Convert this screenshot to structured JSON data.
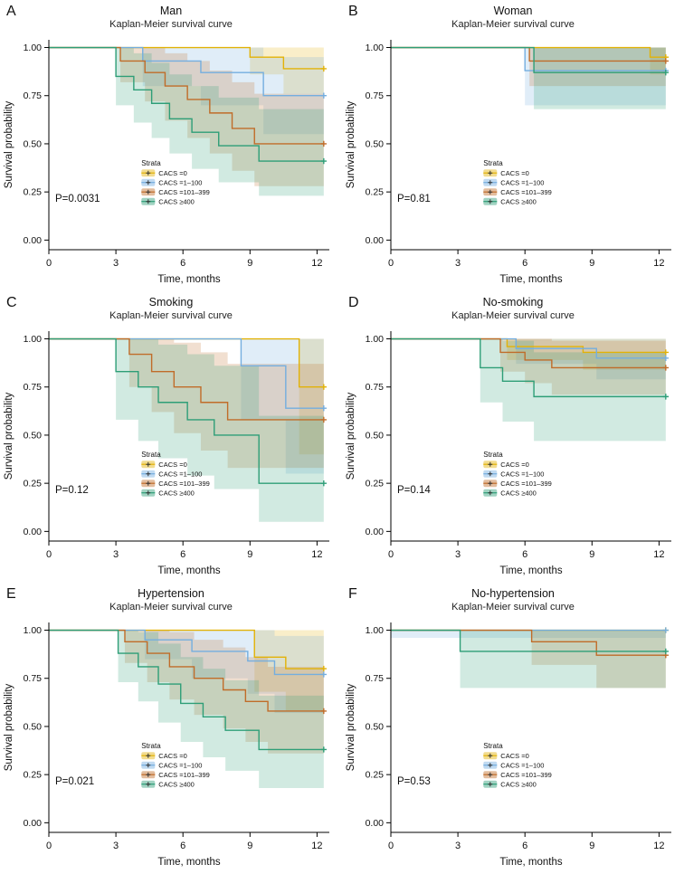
{
  "figure": {
    "background": "#ffffff"
  },
  "legend": {
    "title": "Strata",
    "items": [
      {
        "label": "CACS =0",
        "color": "#E2B207"
      },
      {
        "label": "CACS =1–100",
        "color": "#74AEDF"
      },
      {
        "label": "CACS =101–399",
        "color": "#C06C29"
      },
      {
        "label": "CACS ≥400",
        "color": "#2E9E77"
      }
    ]
  },
  "axes": {
    "xlabel": "Time, months",
    "ylabel": "Survival probability",
    "xticks": [
      0,
      3,
      6,
      9,
      12
    ],
    "xtick_labels": [
      "0",
      "3",
      "6",
      "9",
      "12"
    ],
    "yticks": [
      0,
      0.25,
      0.5,
      0.75,
      1
    ],
    "ytick_labels": [
      "0.00",
      "0.25",
      "0.50",
      "0.75",
      "1.00"
    ],
    "xlim": [
      0,
      12.5
    ],
    "ylim": [
      0,
      1
    ]
  },
  "chart_data": [
    {
      "type": "line",
      "letter": "A",
      "title": "Man",
      "subtitle": "Kaplan-Meier survival curve",
      "p_value": "P=0.0031",
      "xlabel": "Time, months",
      "ylabel": "Survival probability",
      "series": [
        {
          "name": "CACS =0",
          "color": "#E2B207",
          "times": [
            0,
            9.0,
            10.5
          ],
          "values": [
            1.0,
            0.95,
            0.89
          ],
          "lower": [
            1.0,
            0.86,
            0.76
          ],
          "upper": [
            1.0,
            1.0,
            1.0
          ]
        },
        {
          "name": "CACS =1–100",
          "color": "#74AEDF",
          "times": [
            0,
            4.2,
            6.8,
            9.6
          ],
          "values": [
            1.0,
            0.93,
            0.87,
            0.75
          ],
          "lower": [
            1.0,
            0.8,
            0.7,
            0.55
          ],
          "upper": [
            1.0,
            1.0,
            1.0,
            0.95
          ]
        },
        {
          "name": "CACS =101–399",
          "color": "#C06C29",
          "times": [
            0,
            3.2,
            4.3,
            5.2,
            6.2,
            7.2,
            8.2,
            9.2
          ],
          "values": [
            1.0,
            0.93,
            0.87,
            0.8,
            0.73,
            0.66,
            0.58,
            0.5
          ],
          "lower": [
            1.0,
            0.82,
            0.72,
            0.62,
            0.53,
            0.45,
            0.36,
            0.28
          ],
          "upper": [
            1.0,
            1.0,
            1.0,
            0.97,
            0.93,
            0.88,
            0.82,
            0.76
          ]
        },
        {
          "name": "CACS ≥400",
          "color": "#2E9E77",
          "times": [
            0,
            3.0,
            3.8,
            4.6,
            5.4,
            6.4,
            7.6,
            9.4
          ],
          "values": [
            1.0,
            0.85,
            0.78,
            0.71,
            0.63,
            0.56,
            0.49,
            0.41
          ],
          "lower": [
            1.0,
            0.7,
            0.61,
            0.53,
            0.45,
            0.37,
            0.3,
            0.23
          ],
          "upper": [
            1.0,
            1.0,
            0.97,
            0.92,
            0.86,
            0.8,
            0.74,
            0.68
          ]
        }
      ]
    },
    {
      "type": "line",
      "letter": "B",
      "title": "Woman",
      "subtitle": "Kaplan-Meier survival curve",
      "p_value": "P=0.81",
      "xlabel": "Time, months",
      "ylabel": "Survival probability",
      "series": [
        {
          "name": "CACS =0",
          "color": "#E2B207",
          "times": [
            0,
            11.6
          ],
          "values": [
            1.0,
            0.95
          ],
          "lower": [
            1.0,
            0.86
          ],
          "upper": [
            1.0,
            1.0
          ]
        },
        {
          "name": "CACS =1–100",
          "color": "#74AEDF",
          "times": [
            0,
            6.0
          ],
          "values": [
            1.0,
            0.88
          ],
          "lower": [
            1.0,
            0.7
          ],
          "upper": [
            1.0,
            1.0
          ]
        },
        {
          "name": "CACS =101–399",
          "color": "#C06C29",
          "times": [
            0,
            6.2
          ],
          "values": [
            1.0,
            0.93
          ],
          "lower": [
            1.0,
            0.8
          ],
          "upper": [
            1.0,
            1.0
          ]
        },
        {
          "name": "CACS ≥400",
          "color": "#2E9E77",
          "times": [
            0,
            6.4
          ],
          "values": [
            1.0,
            0.87
          ],
          "lower": [
            1.0,
            0.68
          ],
          "upper": [
            1.0,
            1.0
          ]
        }
      ]
    },
    {
      "type": "line",
      "letter": "C",
      "title": "Smoking",
      "subtitle": "Kaplan-Meier survival curve",
      "p_value": "P=0.12",
      "xlabel": "Time, months",
      "ylabel": "Survival probability",
      "series": [
        {
          "name": "CACS =0",
          "color": "#E2B207",
          "times": [
            0,
            11.2
          ],
          "values": [
            1.0,
            0.75
          ],
          "lower": [
            1.0,
            0.4
          ],
          "upper": [
            1.0,
            1.0
          ]
        },
        {
          "name": "CACS =1–100",
          "color": "#74AEDF",
          "times": [
            0,
            8.6,
            10.6
          ],
          "values": [
            1.0,
            0.86,
            0.64
          ],
          "lower": [
            1.0,
            0.58,
            0.3
          ],
          "upper": [
            1.0,
            1.0,
            1.0
          ]
        },
        {
          "name": "CACS =101–399",
          "color": "#C06C29",
          "times": [
            0,
            3.6,
            4.6,
            5.6,
            6.8,
            8.0
          ],
          "values": [
            1.0,
            0.92,
            0.83,
            0.75,
            0.67,
            0.58
          ],
          "lower": [
            1.0,
            0.75,
            0.62,
            0.51,
            0.42,
            0.33
          ],
          "upper": [
            1.0,
            1.0,
            1.0,
            0.98,
            0.93,
            0.87
          ]
        },
        {
          "name": "CACS ≥400",
          "color": "#2E9E77",
          "times": [
            0,
            3.0,
            4.0,
            4.9,
            6.2,
            7.4,
            9.4
          ],
          "values": [
            1.0,
            0.83,
            0.75,
            0.67,
            0.58,
            0.5,
            0.25
          ],
          "lower": [
            1.0,
            0.58,
            0.47,
            0.38,
            0.29,
            0.22,
            0.05
          ],
          "upper": [
            1.0,
            1.0,
            1.0,
            0.97,
            0.92,
            0.86,
            0.6
          ]
        }
      ]
    },
    {
      "type": "line",
      "letter": "D",
      "title": "No-smoking",
      "subtitle": "Kaplan-Meier survival curve",
      "p_value": "P=0.14",
      "xlabel": "Time, months",
      "ylabel": "Survival probability",
      "series": [
        {
          "name": "CACS =0",
          "color": "#E2B207",
          "times": [
            0,
            5.2,
            8.6
          ],
          "values": [
            1.0,
            0.96,
            0.93
          ],
          "lower": [
            1.0,
            0.89,
            0.84
          ],
          "upper": [
            1.0,
            1.0,
            1.0
          ]
        },
        {
          "name": "CACS =1–100",
          "color": "#74AEDF",
          "times": [
            0,
            5.6,
            9.2
          ],
          "values": [
            1.0,
            0.95,
            0.9
          ],
          "lower": [
            1.0,
            0.87,
            0.79
          ],
          "upper": [
            1.0,
            1.0,
            1.0
          ]
        },
        {
          "name": "CACS =101–399",
          "color": "#C06C29",
          "times": [
            0,
            4.9,
            6.0,
            7.2
          ],
          "values": [
            1.0,
            0.93,
            0.89,
            0.85
          ],
          "lower": [
            1.0,
            0.83,
            0.77,
            0.71
          ],
          "upper": [
            1.0,
            1.0,
            1.0,
            0.99
          ]
        },
        {
          "name": "CACS ≥400",
          "color": "#2E9E77",
          "times": [
            0,
            4.0,
            5.0,
            6.4
          ],
          "values": [
            1.0,
            0.85,
            0.78,
            0.7
          ],
          "lower": [
            1.0,
            0.67,
            0.57,
            0.47
          ],
          "upper": [
            1.0,
            1.0,
            0.99,
            0.93
          ]
        }
      ]
    },
    {
      "type": "line",
      "letter": "E",
      "title": "Hypertension",
      "subtitle": "Kaplan-Meier survival curve",
      "p_value": "P=0.021",
      "xlabel": "Time, months",
      "ylabel": "Survival probability",
      "series": [
        {
          "name": "CACS =0",
          "color": "#E2B207",
          "times": [
            0,
            9.2,
            10.6
          ],
          "values": [
            1.0,
            0.86,
            0.8
          ],
          "lower": [
            1.0,
            0.68,
            0.58
          ],
          "upper": [
            1.0,
            1.0,
            1.0
          ]
        },
        {
          "name": "CACS =1–100",
          "color": "#74AEDF",
          "times": [
            0,
            4.3,
            6.4,
            8.9,
            10.1
          ],
          "values": [
            1.0,
            0.95,
            0.89,
            0.84,
            0.77
          ],
          "lower": [
            1.0,
            0.85,
            0.75,
            0.67,
            0.57
          ],
          "upper": [
            1.0,
            1.0,
            1.0,
            1.0,
            0.97
          ]
        },
        {
          "name": "CACS =101–399",
          "color": "#C06C29",
          "times": [
            0,
            3.4,
            4.4,
            5.4,
            6.5,
            7.8,
            8.8,
            9.8
          ],
          "values": [
            1.0,
            0.94,
            0.88,
            0.81,
            0.75,
            0.69,
            0.63,
            0.58
          ],
          "lower": [
            1.0,
            0.83,
            0.73,
            0.64,
            0.56,
            0.49,
            0.42,
            0.36
          ],
          "upper": [
            1.0,
            1.0,
            1.0,
            0.99,
            0.95,
            0.91,
            0.86,
            0.81
          ]
        },
        {
          "name": "CACS ≥400",
          "color": "#2E9E77",
          "times": [
            0,
            3.1,
            4.0,
            4.9,
            5.9,
            6.9,
            7.9,
            9.4
          ],
          "values": [
            1.0,
            0.88,
            0.81,
            0.72,
            0.62,
            0.55,
            0.48,
            0.38
          ],
          "lower": [
            1.0,
            0.73,
            0.63,
            0.52,
            0.42,
            0.34,
            0.27,
            0.18
          ],
          "upper": [
            1.0,
            1.0,
            0.99,
            0.93,
            0.86,
            0.8,
            0.74,
            0.66
          ]
        }
      ]
    },
    {
      "type": "line",
      "letter": "F",
      "title": "No-hypertension",
      "subtitle": "Kaplan-Meier survival curve",
      "p_value": "P=0.53",
      "xlabel": "Time, months",
      "ylabel": "Survival probability",
      "series": [
        {
          "name": "CACS =0",
          "color": "#E2B207",
          "times": [
            0
          ],
          "values": [
            1.0
          ],
          "lower": [
            1.0
          ],
          "upper": [
            1.0
          ]
        },
        {
          "name": "CACS =1–100",
          "color": "#74AEDF",
          "times": [
            0
          ],
          "values": [
            1.0
          ],
          "lower": [
            0.96
          ],
          "upper": [
            1.0
          ]
        },
        {
          "name": "CACS =101–399",
          "color": "#C06C29",
          "times": [
            0,
            6.3,
            9.2
          ],
          "values": [
            1.0,
            0.94,
            0.87
          ],
          "lower": [
            1.0,
            0.82,
            0.7
          ],
          "upper": [
            1.0,
            1.0,
            1.0
          ]
        },
        {
          "name": "CACS ≥400",
          "color": "#2E9E77",
          "times": [
            0,
            3.1
          ],
          "values": [
            1.0,
            0.89
          ],
          "lower": [
            1.0,
            0.7
          ],
          "upper": [
            1.0,
            1.0
          ]
        }
      ]
    }
  ]
}
